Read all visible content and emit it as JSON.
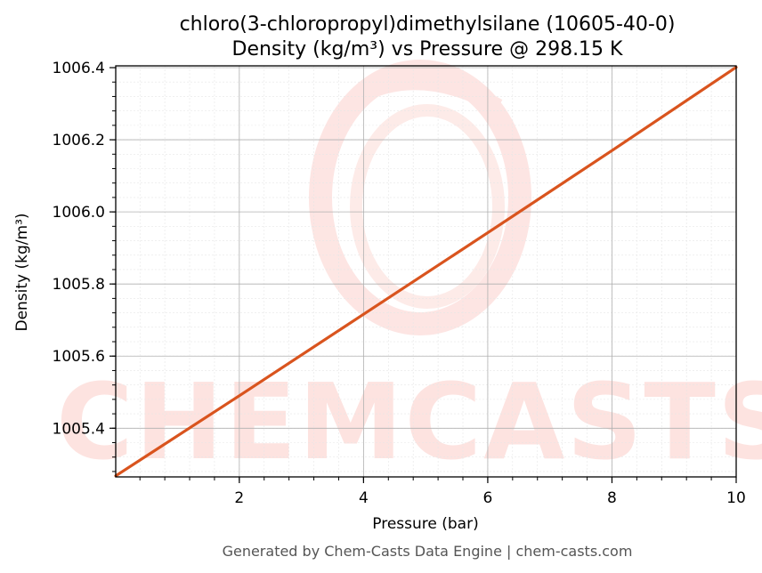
{
  "chart_data": {
    "type": "line",
    "title": "chloro(3-chloropropyl)dimethylsilane (10605-40-0)",
    "subtitle": "Density (kg/m³) vs Pressure @ 298.15 K",
    "xlabel": "Pressure (bar)",
    "ylabel": "Density (kg/m³)",
    "xlim": [
      0.01,
      10
    ],
    "ylim": [
      1005.265,
      1006.405
    ],
    "xticks": [
      2,
      4,
      6,
      8,
      10
    ],
    "yticks": [
      1005.4,
      1005.6,
      1005.8,
      1006.0,
      1006.2,
      1006.4
    ],
    "ytick_labels": [
      "1005.4",
      "1005.6",
      "1005.8",
      "1006.0",
      "1006.2",
      "1006.4"
    ],
    "grid": true,
    "series": [
      {
        "color": "#d9541e",
        "x": [
          0.01,
          2,
          4,
          6,
          8,
          10
        ],
        "y": [
          1005.268,
          1005.49,
          1005.716,
          1005.942,
          1006.17,
          1006.401
        ]
      }
    ]
  },
  "watermark": {
    "text": "CHEMCASTS",
    "color": "#fde3e0"
  },
  "footer": "Generated by Chem-Casts Data Engine | chem-casts.com"
}
